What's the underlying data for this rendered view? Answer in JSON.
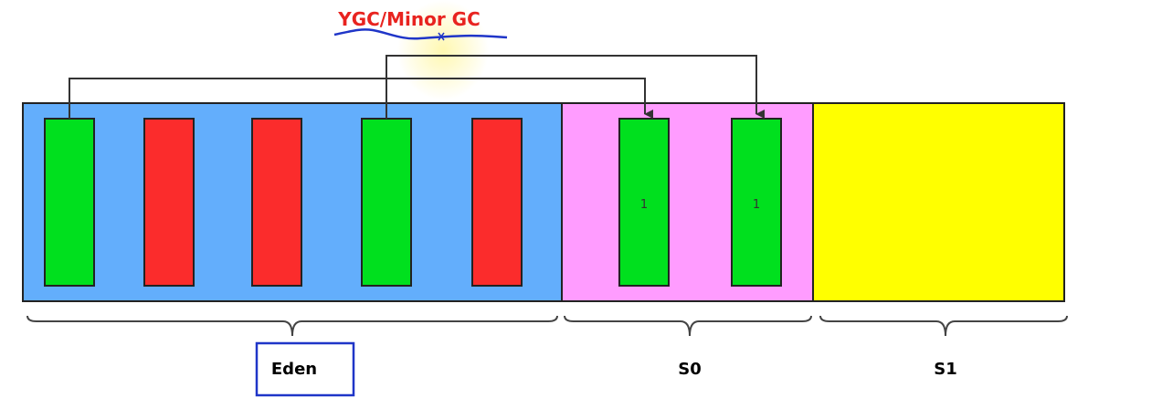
{
  "title": "YGC/Minor GC",
  "colors": {
    "title": "#e8231f",
    "title_underline": "#1f35c8",
    "eden": "#63aefc",
    "s0": "#ff9cff",
    "s1": "#ffff00",
    "live_object": "#00e01e",
    "dead_object": "#fb2c2c",
    "arrow": "#333333",
    "eden_label_box": "#1f35c8"
  },
  "regions": [
    {
      "id": "eden",
      "label": "Eden",
      "boxed": true
    },
    {
      "id": "s0",
      "label": "S0",
      "boxed": false
    },
    {
      "id": "s1",
      "label": "S1",
      "boxed": false
    }
  ],
  "eden_objects": [
    {
      "state": "live"
    },
    {
      "state": "dead"
    },
    {
      "state": "dead"
    },
    {
      "state": "live"
    },
    {
      "state": "dead"
    }
  ],
  "s0_objects": [
    {
      "state": "live",
      "age": "1"
    },
    {
      "state": "live",
      "age": "1"
    }
  ]
}
